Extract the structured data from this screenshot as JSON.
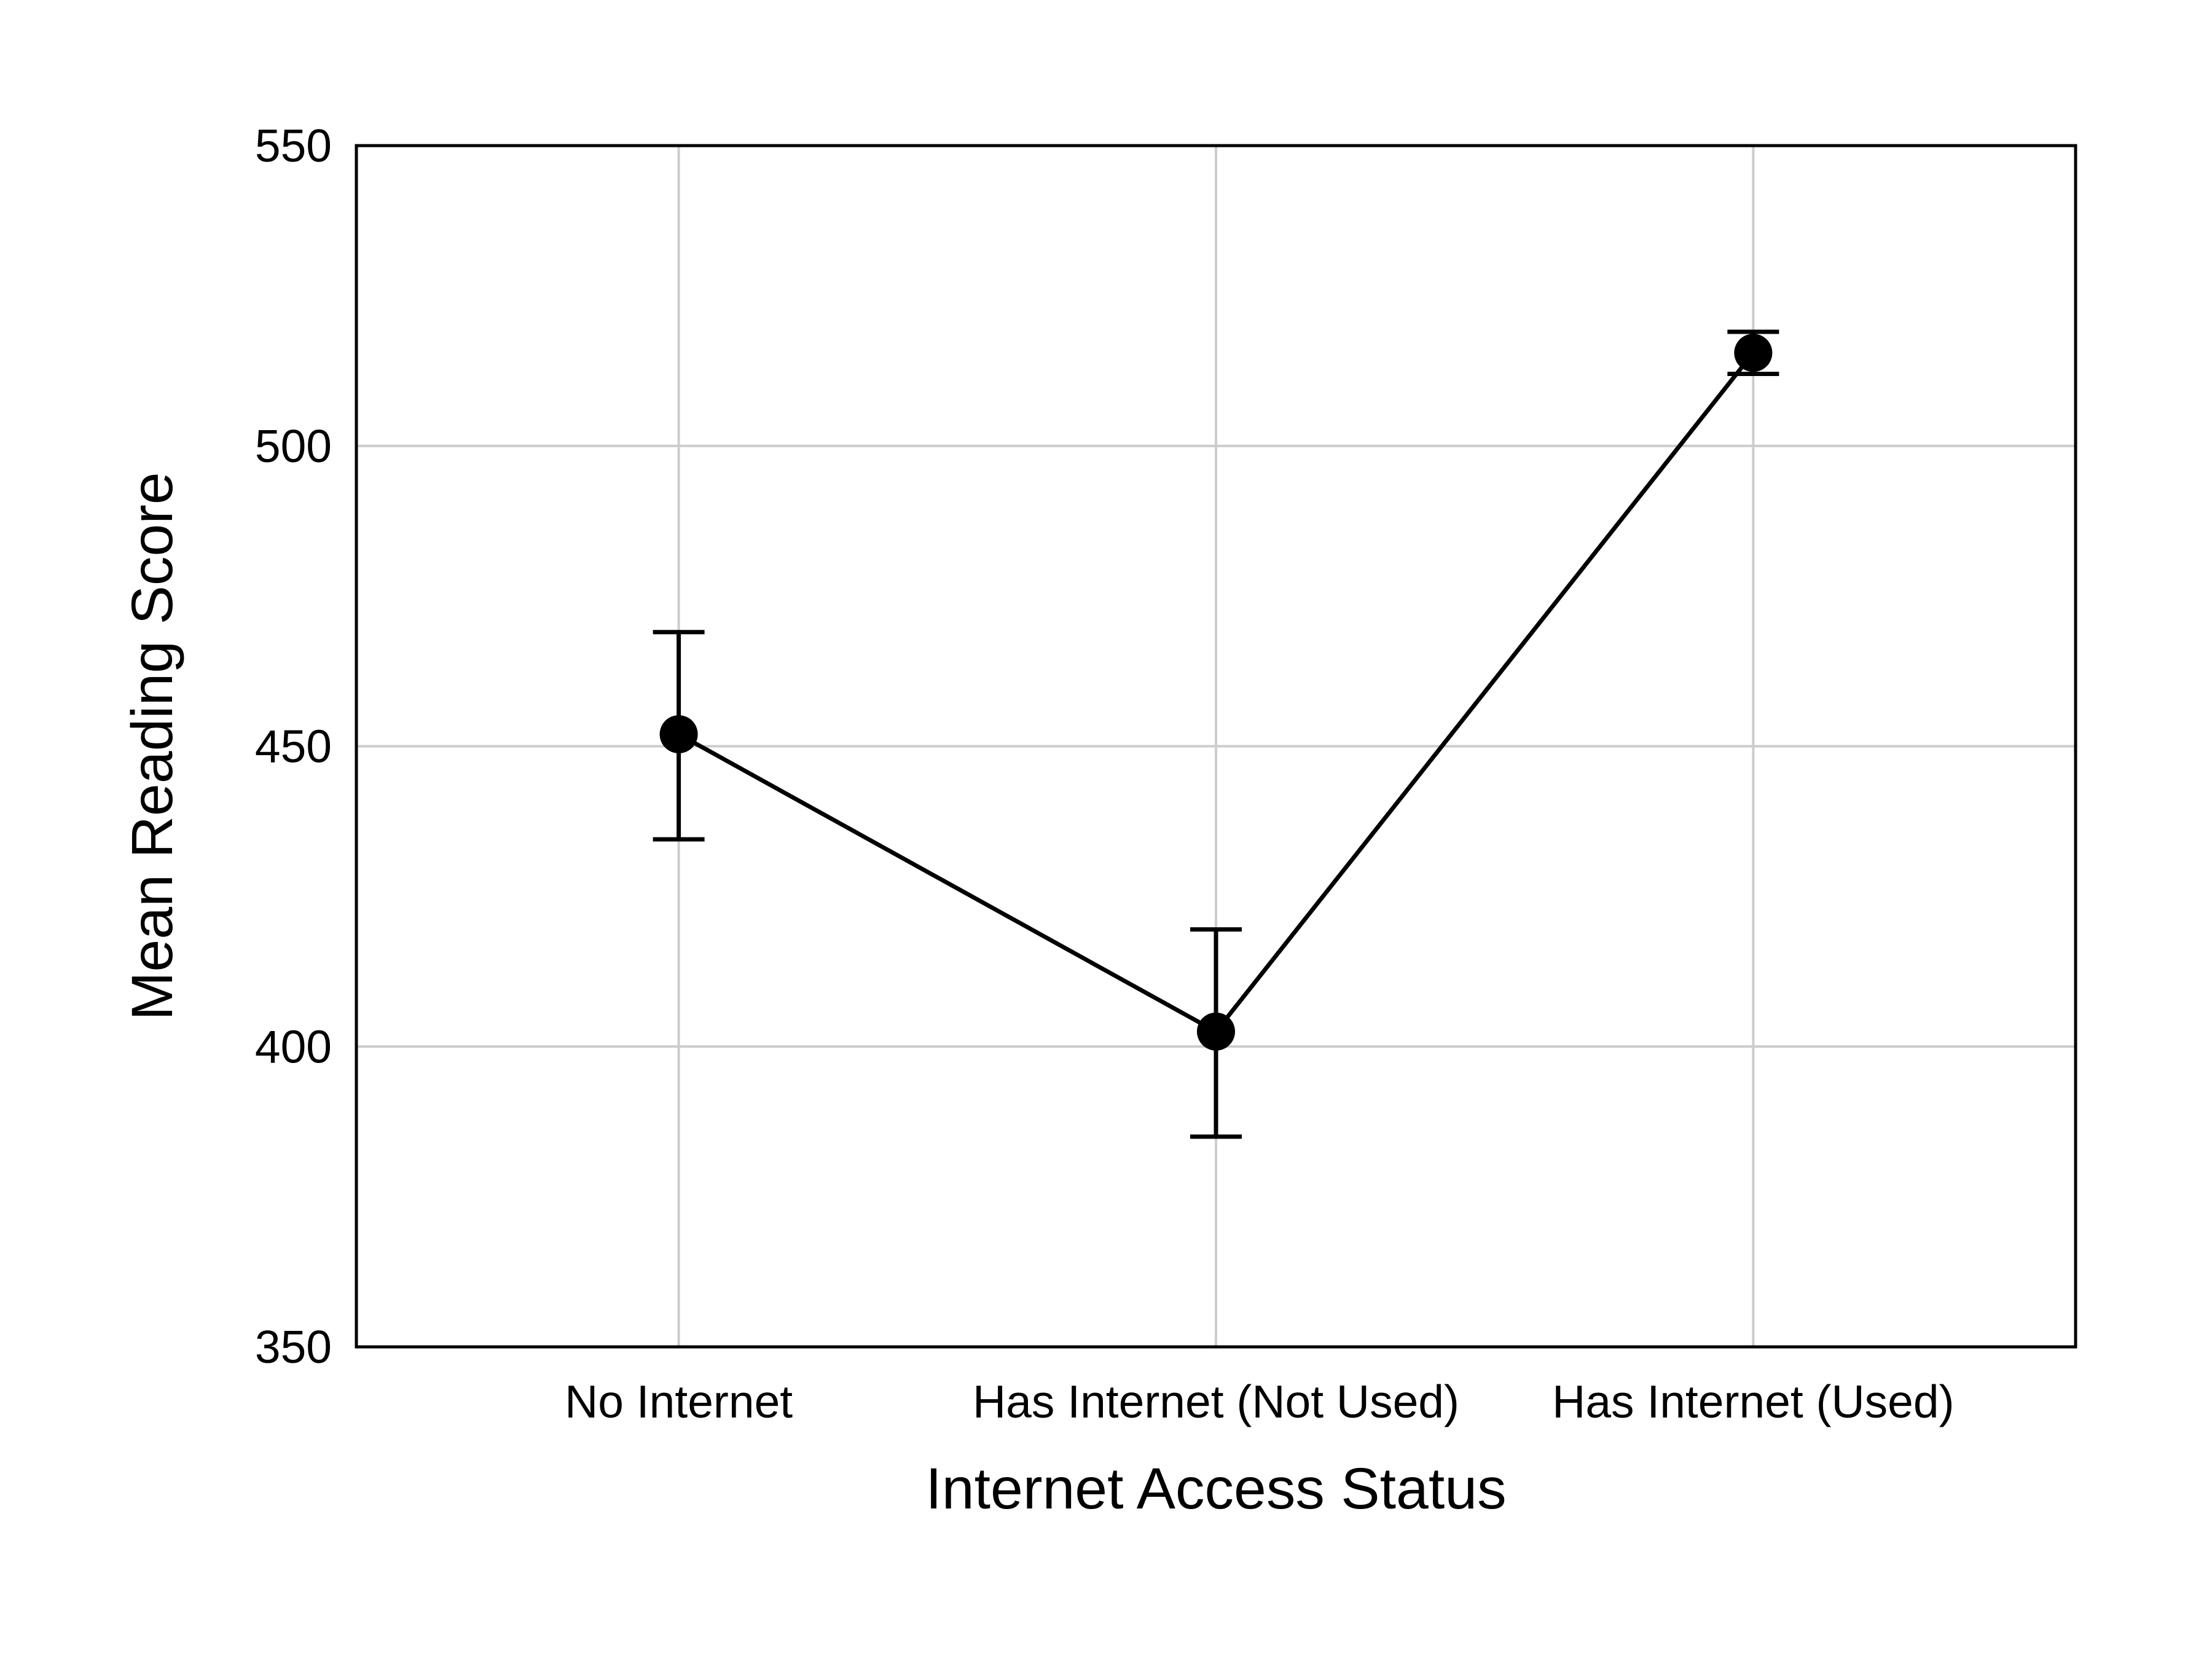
{
  "chart_data": {
    "type": "line",
    "title": "",
    "xlabel": "Internet Access Status",
    "ylabel": "Mean Reading Score",
    "categories": [
      "No Internet",
      "Has Internet (Not Used)",
      "Has Internet (Used)"
    ],
    "series": [
      {
        "values": [
          452,
          402.5,
          515.5
        ],
        "error_lower": [
          434.5,
          385,
          512
        ],
        "error_upper": [
          469,
          419.5,
          519
        ]
      }
    ],
    "ylim": [
      350,
      550
    ],
    "yticks": [
      350,
      400,
      450,
      500,
      550
    ],
    "grid": true,
    "legend": "none",
    "colors": {
      "series": "#000000",
      "grid": "#cccccc",
      "frame": "#000000"
    }
  }
}
